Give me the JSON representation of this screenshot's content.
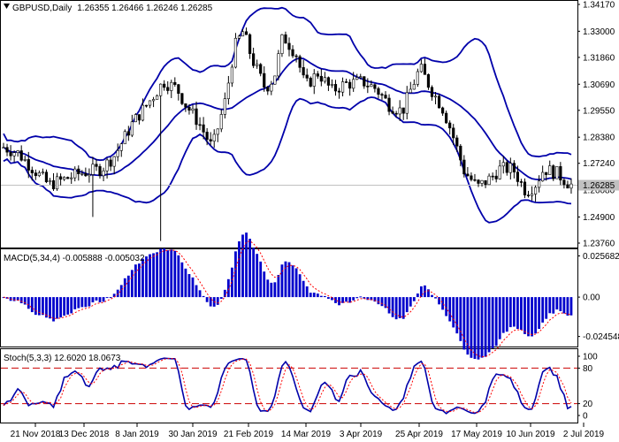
{
  "chart_data": [
    {
      "type": "candlestick",
      "panel": "main",
      "header": {
        "symbol_timeframe": "GBPUSD,Daily",
        "ohlc": "1.26355 1.26466 1.26246 1.26285"
      },
      "current_price_label": "1.26285",
      "y_ticks": [
        "1.34170",
        "1.33000",
        "1.31860",
        "1.30690",
        "1.29550",
        "1.28380",
        "1.27240",
        "1.26080",
        "1.24900",
        "1.23760"
      ],
      "ylim": [
        1.2376,
        1.3417
      ],
      "x_ticks": [
        "21 Nov 2018",
        "13 Dec 2018",
        "8 Jan 2019",
        "30 Jan 2019",
        "21 Feb 2019",
        "14 Mar 2019",
        "3 Apr 2019",
        "25 Apr 2019",
        "17 May 2019",
        "10 Jun 2019",
        "2 Jul 2019"
      ],
      "overlays": [
        "bollinger-upper",
        "bollinger-middle",
        "bollinger-lower"
      ],
      "colors": {
        "candle": "#000000",
        "bands": "#0000aa",
        "price_line": "#c0c0c0"
      }
    },
    {
      "type": "bar",
      "panel": "macd",
      "header": "MACD(5,34,4) -0.005888 -0.005032",
      "y_ticks": [
        "0.025682",
        "0.00",
        "-0.024548"
      ],
      "ylim": [
        -0.0275,
        0.0265
      ],
      "colors": {
        "histogram": "#0000cc",
        "signal": "#ff0000"
      }
    },
    {
      "type": "line",
      "panel": "stochastic",
      "header": "Stoch(5,3,3) 12.6020 18.0673",
      "y_ticks": [
        "100",
        "80",
        "20",
        "0"
      ],
      "ylim": [
        0,
        100
      ],
      "levels": [
        80,
        20
      ],
      "colors": {
        "main": "#0000aa",
        "signal": "#ff0000"
      }
    }
  ]
}
